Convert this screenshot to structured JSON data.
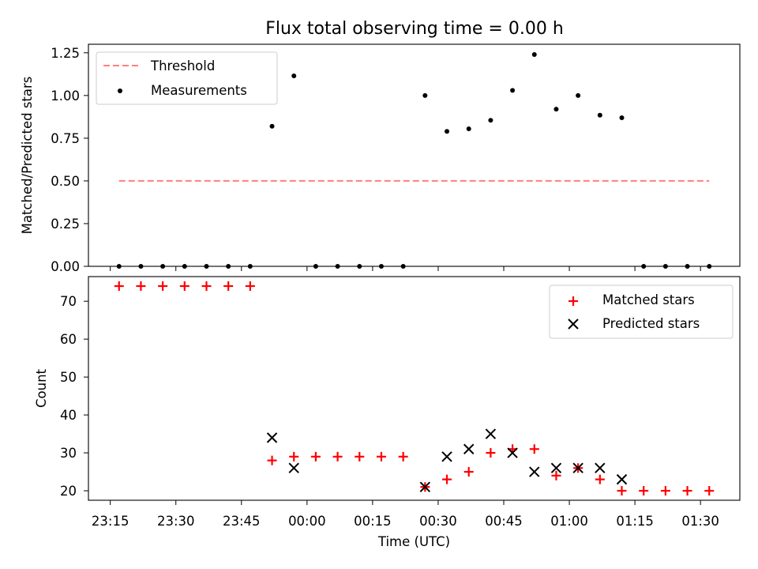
{
  "title": "Flux total observing time = 0.00 h",
  "chart_data": [
    {
      "type": "scatter",
      "panel": "top",
      "ylabel": "Matched/Predicted stars",
      "ylim": [
        0,
        1.3
      ],
      "yticks": [
        0.0,
        0.25,
        0.5,
        0.75,
        1.0,
        1.25
      ],
      "ytick_labels": [
        "0.00",
        "0.25",
        "0.50",
        "0.75",
        "1.00",
        "1.25"
      ],
      "legend_position": "top-left",
      "threshold": {
        "name": "Threshold",
        "value": 0.5,
        "color": "#ff7f7f",
        "style": "dashed"
      },
      "series": [
        {
          "name": "Measurements",
          "color": "#000000",
          "x": [
            "23:17",
            "23:22",
            "23:27",
            "23:32",
            "23:37",
            "23:42",
            "23:47",
            "23:52",
            "23:57",
            "00:02",
            "00:07",
            "00:12",
            "00:17",
            "00:22",
            "00:27",
            "00:32",
            "00:37",
            "00:42",
            "00:47",
            "00:52",
            "00:57",
            "01:02",
            "01:07",
            "01:12",
            "01:17",
            "01:22",
            "01:27",
            "01:32"
          ],
          "y": [
            0,
            0,
            0,
            0,
            0,
            0,
            0,
            0.82,
            1.115,
            0,
            0,
            0,
            0,
            0,
            1.0,
            0.79,
            0.805,
            0.855,
            1.03,
            1.24,
            0.92,
            1.0,
            0.885,
            0.87,
            0,
            0,
            0,
            0
          ]
        }
      ]
    },
    {
      "type": "scatter",
      "panel": "bottom",
      "xlabel": "Time (UTC)",
      "ylabel": "Count",
      "ylim": [
        17.5,
        76.5
      ],
      "yticks": [
        20,
        30,
        40,
        50,
        60,
        70
      ],
      "xlim": [
        "23:10",
        "01:39"
      ],
      "xticks": [
        "23:15",
        "23:30",
        "23:45",
        "00:00",
        "00:15",
        "00:30",
        "00:45",
        "01:00",
        "01:15",
        "01:30"
      ],
      "legend_position": "top-right",
      "series": [
        {
          "name": "Matched stars",
          "marker": "plus",
          "color": "#ff0000",
          "x": [
            "23:17",
            "23:22",
            "23:27",
            "23:32",
            "23:37",
            "23:42",
            "23:47",
            "23:52",
            "23:57",
            "00:02",
            "00:07",
            "00:12",
            "00:17",
            "00:22",
            "00:27",
            "00:32",
            "00:37",
            "00:42",
            "00:47",
            "00:52",
            "00:57",
            "01:02",
            "01:07",
            "01:12",
            "01:17",
            "01:22",
            "01:27",
            "01:32"
          ],
          "y": [
            74,
            74,
            74,
            74,
            74,
            74,
            74,
            28,
            29,
            29,
            29,
            29,
            29,
            29,
            21,
            23,
            25,
            30,
            31,
            31,
            24,
            26,
            23,
            20,
            20,
            20,
            20,
            20
          ]
        },
        {
          "name": "Predicted stars",
          "marker": "x",
          "color": "#000000",
          "x": [
            "23:52",
            "23:57",
            "00:27",
            "00:32",
            "00:37",
            "00:42",
            "00:47",
            "00:52",
            "00:57",
            "01:02",
            "01:07",
            "01:12"
          ],
          "y": [
            34,
            26,
            21,
            29,
            31,
            35,
            30,
            25,
            26,
            26,
            26,
            23
          ]
        }
      ]
    }
  ]
}
